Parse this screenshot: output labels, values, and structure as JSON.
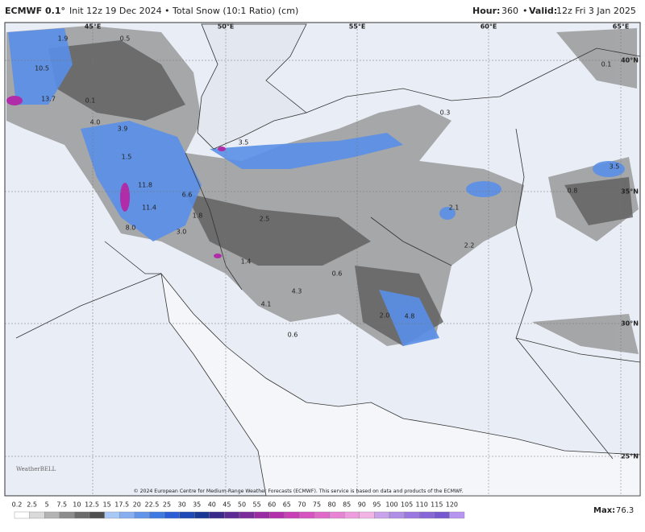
{
  "header": {
    "model": "ECMWF 0.1°",
    "init": "Init 12z 19 Dec 2024",
    "sep": "•",
    "product": "Total Snow (10:1 Ratio) (cm)",
    "hour_label": "Hour:",
    "hour": "360",
    "valid_label": "Valid:",
    "valid": "12z Fri 3 Jan 2025"
  },
  "grid_labels": [
    "45°E",
    "50°E",
    "55°E",
    "60°E",
    "65°E",
    "40°N",
    "35°N",
    "30°N",
    "25°N"
  ],
  "point_values": [
    "10.5",
    "13.7",
    "1.9",
    "0.5",
    "0.1",
    "4.0",
    "3.9",
    "1.5",
    "11.8",
    "11.4",
    "6.6",
    "8.0",
    "3.0",
    "1.8",
    "2.5",
    "3.5",
    "0.3",
    "3.5",
    "0.8",
    "2.1",
    "2.2",
    "0.6",
    "4.3",
    "4.1",
    "0.6",
    "2.0",
    "4.8",
    "0.1",
    "1.4"
  ],
  "copyright": "© 2024 European Centre for Medium-Range Weather Forecasts (ECMWF). This service is based on data and products of the ECMWF.",
  "logo": "WeatherBELL",
  "legend": {
    "labels": [
      "0.2",
      "2.5",
      "5",
      "7.5",
      "10",
      "12.5",
      "15",
      "17.5",
      "20",
      "22.5",
      "25",
      "30",
      "35",
      "40",
      "45",
      "50",
      "55",
      "60",
      "65",
      "70",
      "75",
      "80",
      "85",
      "90",
      "95",
      "100",
      "105",
      "110",
      "115",
      "120"
    ],
    "colors": [
      "#ffffff",
      "#d9d9d9",
      "#b3b3b3",
      "#8c8c8c",
      "#6b6b6b",
      "#4f4f4f",
      "#a8c8f5",
      "#86aef0",
      "#6294ea",
      "#3f7ae4",
      "#2a5fd6",
      "#2049b8",
      "#1a3896",
      "#3b2a8a",
      "#5c2b94",
      "#7b2c9c",
      "#9a2da4",
      "#b22fab",
      "#c93fb6",
      "#d653c0",
      "#e06aca",
      "#e883d4",
      "#ee9cdd",
      "#f2b3e5",
      "#c9a3ea",
      "#b08de6",
      "#9a78e0",
      "#8766d8",
      "#7658cf",
      "#b794f0"
    ]
  },
  "max_label": "Max:",
  "max_value": "76.3"
}
